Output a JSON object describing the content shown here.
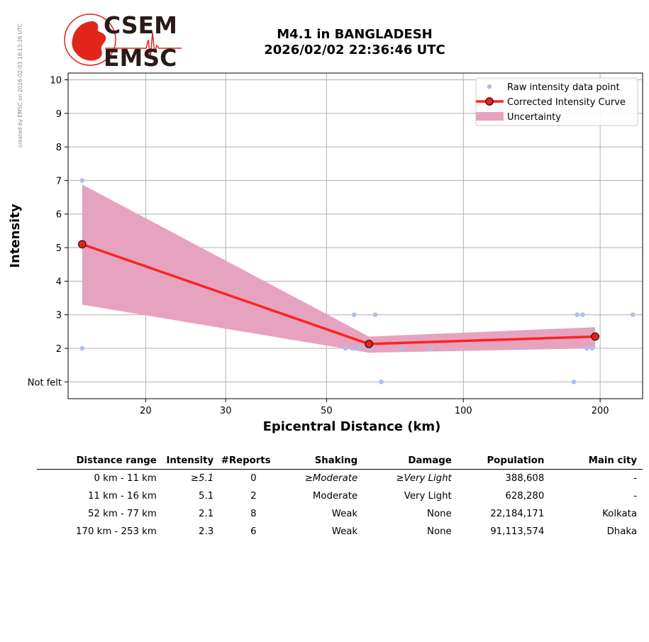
{
  "credit": "created by EMSC on 2026-02-03 18:13:26 UTC",
  "logo": {
    "top_text": "CSEM",
    "bottom_text": "EMSC",
    "accent": "#e1251b",
    "dark": "#2b1a1a"
  },
  "title": {
    "line1": "M4.1 in BANGLADESH",
    "line2": "2026/02/02 22:36:46 UTC"
  },
  "chart_data": {
    "type": "line",
    "xlabel": "Epicentral Distance (km)",
    "ylabel": "Intensity",
    "xscale": "log",
    "xlim": [
      13.5,
      248
    ],
    "ylim": [
      0.5,
      10.2
    ],
    "x_ticks": [
      20,
      30,
      50,
      100,
      200
    ],
    "y_ticks": [
      {
        "value": 1,
        "label": "Not felt"
      },
      {
        "value": 2,
        "label": "2"
      },
      {
        "value": 3,
        "label": "3"
      },
      {
        "value": 4,
        "label": "4"
      },
      {
        "value": 5,
        "label": "5"
      },
      {
        "value": 6,
        "label": "6"
      },
      {
        "value": 7,
        "label": "7"
      },
      {
        "value": 8,
        "label": "8"
      },
      {
        "value": 9,
        "label": "9"
      },
      {
        "value": 10,
        "label": "10"
      }
    ],
    "grid": true,
    "legend_position": "top-right",
    "colors": {
      "raw": "#aebfea",
      "curve": "#ff2222",
      "marker": "#e8231f",
      "band": "#e6a3bf"
    },
    "series": [
      {
        "name": "Raw intensity data point",
        "kind": "scatter",
        "points": [
          [
            14.5,
            7
          ],
          [
            14.5,
            2
          ],
          [
            55,
            2
          ],
          [
            57,
            2
          ],
          [
            57.5,
            3
          ],
          [
            59,
            2
          ],
          [
            62,
            2
          ],
          [
            64,
            3
          ],
          [
            66,
            1
          ],
          [
            73,
            2
          ],
          [
            85,
            2
          ],
          [
            175,
            1
          ],
          [
            178,
            3
          ],
          [
            183,
            3
          ],
          [
            187,
            2
          ],
          [
            192,
            2
          ],
          [
            236,
            3
          ]
        ]
      },
      {
        "name": "Corrected Intensity Curve",
        "kind": "line",
        "points": [
          [
            14.5,
            5.1
          ],
          [
            62,
            2.13
          ],
          [
            195,
            2.35
          ]
        ]
      },
      {
        "name": "Uncertainty",
        "kind": "band",
        "upper": [
          [
            14.5,
            6.88
          ],
          [
            62,
            2.35
          ],
          [
            195,
            2.63
          ]
        ],
        "lower": [
          [
            14.5,
            3.3
          ],
          [
            62,
            1.87
          ],
          [
            195,
            2.0
          ]
        ]
      }
    ]
  },
  "table": {
    "headers": [
      "Distance range",
      "Intensity",
      "#Reports",
      "Shaking",
      "Damage",
      "Population",
      "Main city"
    ],
    "rows": [
      [
        "0 km -   11 km",
        "≥5.1",
        "0",
        "≥Moderate",
        "≥Very Light",
        "388,608",
        "-"
      ],
      [
        "11 km -   16 km",
        "5.1",
        "2",
        "Moderate",
        "Very Light",
        "628,280",
        "-"
      ],
      [
        "52 km -   77 km",
        "2.1",
        "8",
        "Weak",
        "None",
        "22,184,171",
        "Kolkata"
      ],
      [
        "170 km -  253 km",
        "2.3",
        "6",
        "Weak",
        "None",
        "91,113,574",
        "Dhaka"
      ]
    ]
  }
}
